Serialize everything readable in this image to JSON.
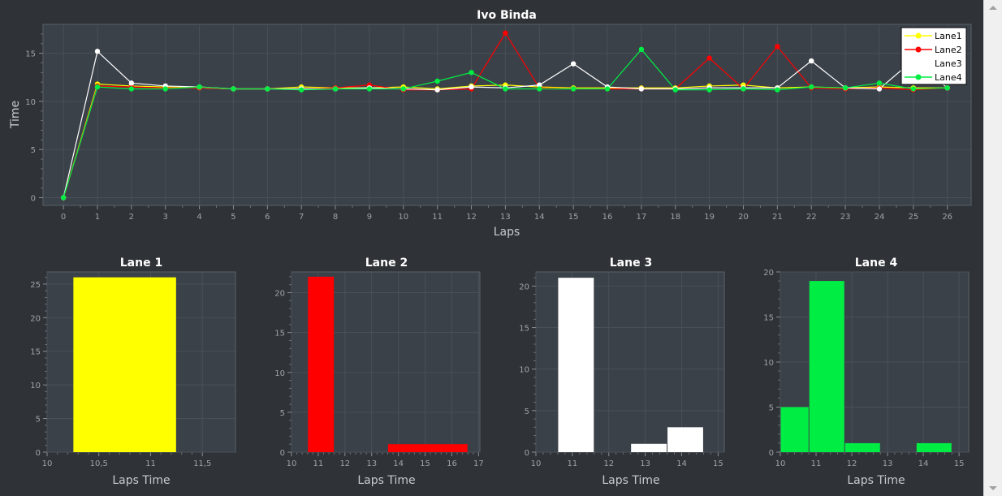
{
  "chart_data": [
    {
      "type": "line",
      "title": "Ivo Binda",
      "xlabel": "Laps",
      "ylabel": "Time",
      "xlim": [
        -0.6,
        26.7
      ],
      "ylim": [
        -0.8,
        18.0
      ],
      "x_ticks": [
        0,
        1,
        2,
        3,
        4,
        5,
        6,
        7,
        8,
        9,
        10,
        11,
        12,
        13,
        14,
        15,
        16,
        17,
        18,
        19,
        20,
        21,
        22,
        23,
        24,
        25,
        26
      ],
      "y_ticks": [
        0,
        5,
        10,
        15
      ],
      "grid": true,
      "legend": "top-right",
      "x": [
        0,
        1,
        2,
        3,
        4,
        5,
        6,
        7,
        8,
        9,
        10,
        11,
        12,
        13,
        14,
        15,
        16,
        17,
        18,
        19,
        20,
        21,
        22,
        23,
        24,
        25,
        26
      ],
      "series": [
        {
          "name": "Lane1",
          "color": "#ffff00",
          "values": [
            0,
            11.8,
            11.6,
            11.5,
            11.4,
            11.3,
            11.3,
            11.5,
            11.4,
            11.4,
            11.5,
            11.3,
            11.6,
            11.7,
            11.5,
            11.4,
            11.4,
            11.4,
            11.4,
            11.6,
            11.7,
            11.4,
            11.5,
            11.4,
            11.5,
            11.4,
            11.4
          ]
        },
        {
          "name": "Lane2",
          "color": "#ff0000",
          "values": [
            0,
            11.6,
            11.5,
            11.4,
            11.4,
            11.3,
            11.3,
            11.3,
            11.4,
            11.7,
            11.2,
            11.2,
            11.3,
            17.1,
            11.4,
            11.3,
            11.3,
            11.3,
            11.3,
            14.5,
            11.3,
            15.7,
            11.4,
            11.3,
            11.4,
            11.2,
            11.4
          ]
        },
        {
          "name": "Lane3",
          "color": "#ffffff",
          "values": [
            0,
            15.2,
            11.9,
            11.6,
            11.5,
            11.3,
            11.3,
            11.3,
            11.3,
            11.4,
            11.3,
            11.2,
            11.5,
            11.4,
            11.7,
            13.9,
            11.5,
            11.3,
            11.3,
            11.4,
            11.4,
            11.4,
            14.2,
            11.4,
            11.3,
            14.3,
            11.4
          ]
        },
        {
          "name": "Lane4",
          "color": "#00ee44",
          "values": [
            0,
            11.5,
            11.3,
            11.3,
            11.5,
            11.3,
            11.3,
            11.2,
            11.3,
            11.3,
            11.3,
            12.1,
            13.0,
            11.3,
            11.3,
            11.3,
            11.3,
            15.4,
            11.2,
            11.2,
            11.3,
            11.2,
            11.5,
            11.4,
            11.9,
            11.3,
            11.4
          ]
        }
      ]
    },
    {
      "type": "bar",
      "title": "Lane 1",
      "xlabel": "Laps Time",
      "ylabel": "",
      "color": "#ffff00",
      "xlim": [
        10,
        11.82
      ],
      "ylim": [
        0,
        26.8
      ],
      "x_ticks": [
        10,
        10.5,
        11,
        11.5
      ],
      "x_tick_labels": [
        "10",
        "10,5",
        "11",
        "11,5"
      ],
      "y_ticks": [
        0,
        5,
        10,
        15,
        20,
        25
      ],
      "bins": [
        {
          "from": 10.25,
          "to": 11.25,
          "value": 26
        }
      ]
    },
    {
      "type": "bar",
      "title": "Lane 2",
      "xlabel": "Laps Time",
      "ylabel": "",
      "color": "#ff0000",
      "xlim": [
        10,
        17.05
      ],
      "ylim": [
        0,
        22.6
      ],
      "x_ticks": [
        10,
        11,
        12,
        13,
        14,
        15,
        16,
        17
      ],
      "x_tick_labels": [
        "10",
        "11",
        "12",
        "13",
        "14",
        "15",
        "16",
        "17"
      ],
      "y_ticks": [
        0,
        5,
        10,
        15,
        20
      ],
      "bins": [
        {
          "from": 10.6,
          "to": 11.6,
          "value": 22
        },
        {
          "from": 13.6,
          "to": 16.6,
          "value": 1
        }
      ]
    },
    {
      "type": "bar",
      "title": "Lane 3",
      "xlabel": "Laps Time",
      "ylabel": "",
      "color": "#ffffff",
      "xlim": [
        10,
        15.17
      ],
      "ylim": [
        0,
        21.7
      ],
      "x_ticks": [
        10,
        11,
        12,
        13,
        14,
        15
      ],
      "x_tick_labels": [
        "10",
        "11",
        "12",
        "13",
        "14",
        "15"
      ],
      "y_ticks": [
        0,
        5,
        10,
        15,
        20
      ],
      "bins": [
        {
          "from": 10.6,
          "to": 11.6,
          "value": 21
        },
        {
          "from": 12.6,
          "to": 13.6,
          "value": 1
        },
        {
          "from": 13.6,
          "to": 14.6,
          "value": 3
        }
      ]
    },
    {
      "type": "bar",
      "title": "Lane 4",
      "xlabel": "Laps Time",
      "ylabel": "",
      "color": "#00ee44",
      "xlim": [
        10,
        15.27
      ],
      "ylim": [
        0,
        20
      ],
      "x_ticks": [
        10,
        11,
        12,
        13,
        14,
        15
      ],
      "x_tick_labels": [
        "10",
        "11",
        "12",
        "13",
        "14",
        "15"
      ],
      "y_ticks": [
        0,
        5,
        10,
        15,
        20
      ],
      "bins": [
        {
          "from": 10,
          "to": 10.8,
          "value": 5
        },
        {
          "from": 10.8,
          "to": 11.8,
          "value": 19
        },
        {
          "from": 11.8,
          "to": 12.8,
          "value": 1
        },
        {
          "from": 13.8,
          "to": 14.8,
          "value": 1
        }
      ]
    }
  ]
}
